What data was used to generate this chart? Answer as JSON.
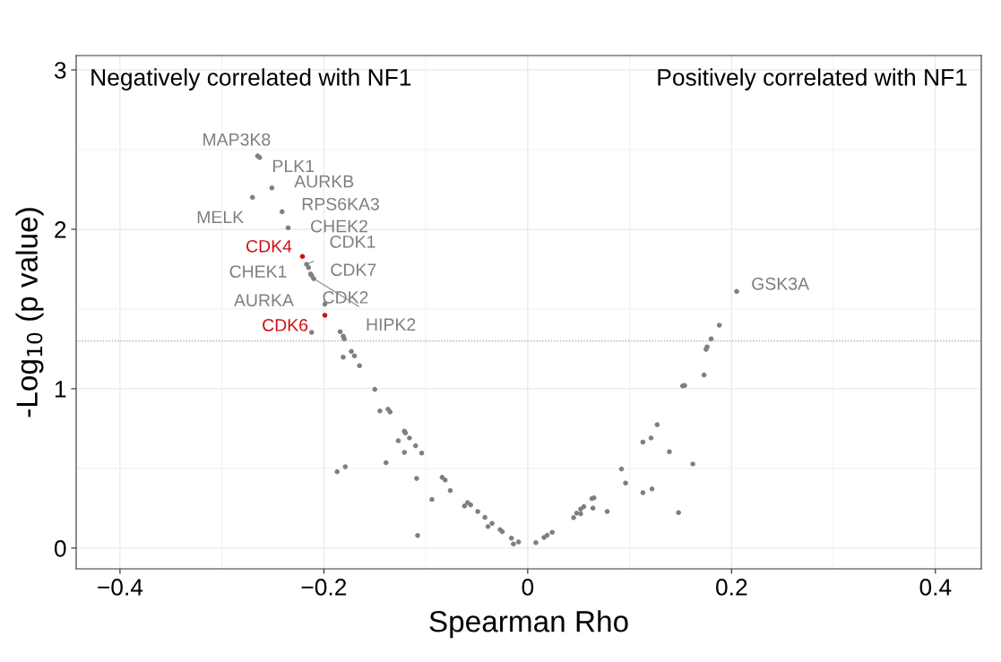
{
  "chart_data": {
    "type": "scatter",
    "xlabel": "Spearman Rho",
    "ylabel": "-Log$_{10}$ (p value)",
    "xlim": [
      -0.443,
      0.445
    ],
    "ylim": [
      -0.13,
      3.09
    ],
    "xticks": [
      {
        "value": -0.4,
        "label": "−0.4"
      },
      {
        "value": -0.2,
        "label": "−0.2"
      },
      {
        "value": 0,
        "label": "0"
      },
      {
        "value": 0.2,
        "label": "0.2"
      },
      {
        "value": 0.4,
        "label": "0.4"
      }
    ],
    "yticks": [
      0,
      1,
      2,
      3
    ],
    "grid": true,
    "marker": "circle",
    "ref_lines": [
      {
        "axis": "y",
        "value": 1.3,
        "color": "#9a9a9a",
        "line_style": "dotted"
      }
    ],
    "series": [
      {
        "x": [
          -0.265,
          -0.263,
          -0.251,
          -0.27,
          -0.241,
          -0.235,
          -0.221,
          -0.217,
          -0.215,
          -0.212,
          -0.213,
          -0.199,
          -0.199,
          -0.21,
          0.205,
          -0.212,
          -0.184,
          -0.181,
          -0.18,
          -0.181,
          -0.173,
          -0.17,
          -0.165,
          -0.15,
          -0.145,
          -0.137,
          -0.135,
          -0.121,
          -0.12,
          -0.116,
          -0.127,
          -0.11,
          -0.121,
          -0.104,
          -0.187,
          -0.179,
          -0.139,
          -0.109,
          -0.084,
          -0.081,
          -0.076,
          -0.094,
          -0.059,
          -0.062,
          -0.056,
          -0.049,
          -0.042,
          -0.035,
          -0.039,
          -0.027,
          -0.025,
          -0.108,
          -0.016,
          -0.014,
          -0.009,
          0.008,
          0.016,
          0.019,
          0.024,
          0.045,
          0.048,
          0.052,
          0.052,
          0.055,
          0.063,
          0.065,
          0.064,
          0.078,
          0.092,
          0.096,
          0.113,
          0.121,
          0.127,
          0.139,
          0.113,
          0.122,
          0.148,
          0.162,
          0.152,
          0.154,
          0.173,
          0.175,
          0.176,
          0.18,
          0.188
        ],
        "values": [
          2.46,
          2.45,
          2.26,
          2.2,
          2.11,
          2.01,
          1.83,
          1.78,
          1.76,
          1.71,
          1.72,
          1.53,
          1.46,
          1.69,
          1.61,
          1.354,
          1.358,
          1.33,
          1.313,
          1.198,
          1.234,
          1.206,
          1.144,
          0.996,
          0.86,
          0.871,
          0.854,
          0.734,
          0.723,
          0.691,
          0.674,
          0.642,
          0.601,
          0.596,
          0.479,
          0.51,
          0.536,
          0.437,
          0.444,
          0.427,
          0.361,
          0.305,
          0.285,
          0.264,
          0.271,
          0.23,
          0.193,
          0.155,
          0.135,
          0.116,
          0.103,
          0.079,
          0.062,
          0.026,
          0.039,
          0.034,
          0.067,
          0.08,
          0.099,
          0.191,
          0.219,
          0.215,
          0.245,
          0.26,
          0.311,
          0.315,
          0.251,
          0.23,
          0.496,
          0.408,
          0.665,
          0.691,
          0.774,
          0.605,
          0.347,
          0.371,
          0.223,
          0.528,
          1.017,
          1.02,
          1.086,
          1.247,
          1.262,
          1.313,
          1.399
        ],
        "colors": [
          "#7f7f7f",
          "#7f7f7f",
          "#7f7f7f",
          "#7f7f7f",
          "#7f7f7f",
          "#7f7f7f",
          "#cc1111",
          "#7f7f7f",
          "#7f7f7f",
          "#7f7f7f",
          "#7f7f7f",
          "#7f7f7f",
          "#cc1111",
          "#7f7f7f",
          "#7f7f7f",
          "#7f7f7f",
          "#7f7f7f",
          "#7f7f7f",
          "#7f7f7f",
          "#7f7f7f",
          "#7f7f7f",
          "#7f7f7f",
          "#7f7f7f",
          "#7f7f7f",
          "#7f7f7f",
          "#7f7f7f",
          "#7f7f7f",
          "#7f7f7f",
          "#7f7f7f",
          "#7f7f7f",
          "#7f7f7f",
          "#7f7f7f",
          "#7f7f7f",
          "#7f7f7f",
          "#7f7f7f",
          "#7f7f7f",
          "#7f7f7f",
          "#7f7f7f",
          "#7f7f7f",
          "#7f7f7f",
          "#7f7f7f",
          "#7f7f7f",
          "#7f7f7f",
          "#7f7f7f",
          "#7f7f7f",
          "#7f7f7f",
          "#7f7f7f",
          "#7f7f7f",
          "#7f7f7f",
          "#7f7f7f",
          "#7f7f7f",
          "#7f7f7f",
          "#7f7f7f",
          "#7f7f7f",
          "#7f7f7f",
          "#7f7f7f",
          "#7f7f7f",
          "#7f7f7f",
          "#7f7f7f",
          "#7f7f7f",
          "#7f7f7f",
          "#7f7f7f",
          "#7f7f7f",
          "#7f7f7f",
          "#7f7f7f",
          "#7f7f7f",
          "#7f7f7f",
          "#7f7f7f",
          "#7f7f7f",
          "#7f7f7f",
          "#7f7f7f",
          "#7f7f7f",
          "#7f7f7f",
          "#7f7f7f",
          "#7f7f7f",
          "#7f7f7f",
          "#7f7f7f",
          "#7f7f7f",
          "#7f7f7f",
          "#7f7f7f",
          "#7f7f7f",
          "#7f7f7f",
          "#7f7f7f",
          "#7f7f7f",
          "#7f7f7f"
        ]
      }
    ],
    "annotations": [
      "Negatively correlated with NF1",
      "Positively correlated with NF1",
      {
        "text": "MAP3K8",
        "x": -0.265,
        "y": 2.46
      },
      {
        "text": "PLK1",
        "x": -0.263,
        "y": 2.45
      },
      {
        "text": "AURKB",
        "x": -0.251,
        "y": 2.26
      },
      {
        "text": "MELK",
        "x": -0.27,
        "y": 2.2
      },
      {
        "text": "RPS6KA3",
        "x": -0.241,
        "y": 2.11
      },
      {
        "text": "CHEK2",
        "x": -0.235,
        "y": 2.01
      },
      {
        "text": "CDK4",
        "x": -0.221,
        "y": 1.83
      },
      {
        "text": "CDK1",
        "x": -0.217,
        "y": 1.78
      },
      {
        "text": "CDK7",
        "x": -0.215,
        "y": 1.76
      },
      {
        "text": "CHEK1",
        "x": -0.212,
        "y": 1.71
      },
      {
        "text": "CDK2",
        "x": -0.213,
        "y": 1.72
      },
      {
        "text": "AURKA",
        "x": -0.199,
        "y": 1.53
      },
      {
        "text": "CDK6",
        "x": -0.199,
        "y": 1.46
      },
      {
        "text": "HIPK2",
        "x": -0.21,
        "y": 1.69
      },
      {
        "text": "GSK3A",
        "x": 0.205,
        "y": 1.61
      }
    ]
  }
}
